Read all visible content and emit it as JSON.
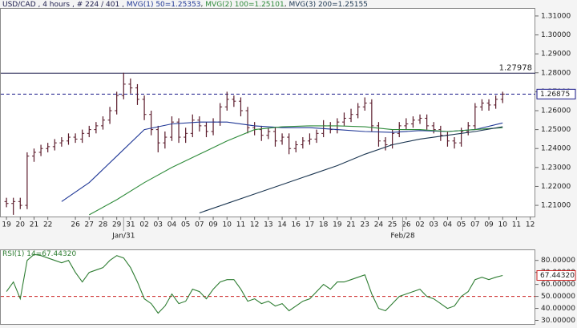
{
  "chart_data": [
    {
      "type": "ohlc",
      "header": "USD/CAD , 4 hours , # 224 / 401 ,",
      "color": "#5a1a2a",
      "x": [
        0,
        0.5,
        1,
        1.5,
        2,
        2.5,
        3,
        3.5,
        4,
        4.5,
        5,
        5.5,
        6,
        6.5,
        7,
        7.5,
        8,
        8.5,
        9,
        9.5,
        10,
        10.5,
        11,
        11.5,
        12,
        12.5,
        13,
        13.5,
        14,
        14.5,
        15,
        15.5,
        16,
        16.5,
        17,
        17.5,
        18,
        18.5,
        19,
        19.5,
        20,
        20.5,
        21,
        21.5,
        22,
        22.5,
        23,
        23.5,
        24,
        24.5,
        25,
        25.5,
        26,
        26.5,
        27,
        27.5,
        28,
        28.5,
        29,
        29.5,
        30,
        30.5,
        31,
        31.5,
        32,
        32.5,
        33,
        33.5,
        34,
        34.5,
        35,
        35.5,
        36
      ],
      "open": [
        1.212,
        1.211,
        1.212,
        1.21,
        1.236,
        1.238,
        1.24,
        1.241,
        1.243,
        1.244,
        1.246,
        1.245,
        1.248,
        1.25,
        1.252,
        1.255,
        1.26,
        1.268,
        1.274,
        1.272,
        1.266,
        1.258,
        1.25,
        1.243,
        1.246,
        1.254,
        1.246,
        1.248,
        1.255,
        1.252,
        1.249,
        1.254,
        1.262,
        1.266,
        1.265,
        1.26,
        1.251,
        1.25,
        1.247,
        1.249,
        1.244,
        1.246,
        1.24,
        1.242,
        1.244,
        1.245,
        1.248,
        1.252,
        1.25,
        1.254,
        1.256,
        1.258,
        1.262,
        1.264,
        1.252,
        1.244,
        1.242,
        1.248,
        1.252,
        1.253,
        1.255,
        1.256,
        1.252,
        1.25,
        1.247,
        1.244,
        1.243,
        1.249,
        1.252,
        1.262,
        1.264,
        1.263,
        1.266
      ],
      "high": [
        1.214,
        1.214,
        1.214,
        1.238,
        1.24,
        1.242,
        1.243,
        1.245,
        1.246,
        1.248,
        1.248,
        1.25,
        1.252,
        1.254,
        1.257,
        1.262,
        1.27,
        1.28,
        1.277,
        1.274,
        1.268,
        1.26,
        1.252,
        1.249,
        1.257,
        1.256,
        1.251,
        1.258,
        1.257,
        1.254,
        1.256,
        1.264,
        1.27,
        1.268,
        1.267,
        1.262,
        1.254,
        1.252,
        1.251,
        1.251,
        1.248,
        1.248,
        1.244,
        1.246,
        1.248,
        1.25,
        1.255,
        1.254,
        1.256,
        1.259,
        1.261,
        1.264,
        1.267,
        1.266,
        1.254,
        1.246,
        1.25,
        1.254,
        1.256,
        1.257,
        1.258,
        1.258,
        1.254,
        1.252,
        1.249,
        1.246,
        1.251,
        1.254,
        1.264,
        1.266,
        1.266,
        1.268,
        1.27
      ],
      "low": [
        1.209,
        1.205,
        1.208,
        1.208,
        1.233,
        1.236,
        1.238,
        1.239,
        1.241,
        1.242,
        1.243,
        1.243,
        1.246,
        1.248,
        1.25,
        1.253,
        1.258,
        1.266,
        1.269,
        1.263,
        1.255,
        1.247,
        1.238,
        1.24,
        1.244,
        1.243,
        1.243,
        1.246,
        1.249,
        1.246,
        1.247,
        1.252,
        1.26,
        1.262,
        1.257,
        1.248,
        1.247,
        1.244,
        1.245,
        1.241,
        1.242,
        1.237,
        1.238,
        1.24,
        1.242,
        1.243,
        1.246,
        1.248,
        1.248,
        1.252,
        1.254,
        1.256,
        1.26,
        1.249,
        1.241,
        1.239,
        1.24,
        1.246,
        1.25,
        1.251,
        1.253,
        1.25,
        1.248,
        1.244,
        1.241,
        1.24,
        1.241,
        1.247,
        1.25,
        1.26,
        1.26,
        1.261,
        1.264
      ],
      "close": [
        1.211,
        1.212,
        1.21,
        1.236,
        1.238,
        1.24,
        1.241,
        1.243,
        1.244,
        1.246,
        1.245,
        1.248,
        1.25,
        1.252,
        1.255,
        1.26,
        1.268,
        1.274,
        1.272,
        1.266,
        1.258,
        1.25,
        1.243,
        1.246,
        1.254,
        1.246,
        1.248,
        1.255,
        1.252,
        1.249,
        1.254,
        1.262,
        1.266,
        1.265,
        1.26,
        1.251,
        1.25,
        1.247,
        1.249,
        1.244,
        1.246,
        1.24,
        1.242,
        1.244,
        1.245,
        1.248,
        1.252,
        1.25,
        1.254,
        1.256,
        1.258,
        1.262,
        1.264,
        1.252,
        1.244,
        1.242,
        1.248,
        1.252,
        1.253,
        1.255,
        1.256,
        1.252,
        1.25,
        1.247,
        1.244,
        1.243,
        1.249,
        1.252,
        1.262,
        1.264,
        1.263,
        1.266,
        1.26875
      ],
      "series": [
        {
          "name": "MVG(1) 50=1.25353",
          "color": "#1f3796",
          "x": [
            0,
            2,
            4,
            6,
            8,
            10,
            12,
            14,
            16,
            18,
            20,
            22,
            24,
            26,
            28,
            30,
            32,
            34,
            36
          ],
          "values": [
            null,
            null,
            1.212,
            1.222,
            1.236,
            1.25,
            1.253,
            1.254,
            1.254,
            1.252,
            1.251,
            1.251,
            1.25,
            1.249,
            1.2485,
            1.2495,
            1.249,
            1.25,
            1.2535
          ]
        },
        {
          "name": "MVG(2) 100=1.25101",
          "color": "#2e8b3a",
          "x": [
            0,
            2,
            4,
            6,
            8,
            10,
            12,
            14,
            16,
            18,
            20,
            22,
            24,
            26,
            28,
            30,
            32,
            34,
            36
          ],
          "values": [
            null,
            null,
            null,
            1.205,
            1.213,
            1.222,
            1.23,
            1.237,
            1.244,
            1.25,
            1.2515,
            1.252,
            1.252,
            1.2515,
            1.25,
            1.25,
            1.249,
            1.25,
            1.251
          ]
        },
        {
          "name": "MVG(3) 200=1.25155",
          "color": "#1a3550",
          "x": [
            0,
            2,
            4,
            6,
            8,
            10,
            12,
            14,
            16,
            18,
            20,
            22,
            24,
            26,
            28,
            30,
            32,
            34,
            36
          ],
          "values": [
            null,
            null,
            null,
            null,
            null,
            null,
            null,
            1.206,
            1.211,
            1.216,
            1.221,
            1.226,
            1.231,
            1.237,
            1.242,
            1.245,
            1.247,
            1.249,
            1.2515
          ]
        }
      ],
      "xlim": [
        -0.47,
        38.37
      ],
      "ylim": [
        1.2041,
        1.3142
      ],
      "yticks": [
        {
          "value": 1.21,
          "label": "1.21000"
        },
        {
          "value": 1.22,
          "label": "1.22000"
        },
        {
          "value": 1.23,
          "label": "1.23000"
        },
        {
          "value": 1.24,
          "label": "1.24000"
        },
        {
          "value": 1.25,
          "label": "1.25000"
        },
        {
          "value": 1.26,
          "label": "1.26000"
        },
        {
          "value": 1.27,
          "label": "1.27000"
        },
        {
          "value": 1.28,
          "label": "1.28000"
        },
        {
          "value": 1.29,
          "label": "1.29000"
        },
        {
          "value": 1.3,
          "label": "1.30000"
        },
        {
          "value": 1.31,
          "label": "1.31000"
        }
      ],
      "xticks": [
        {
          "value": 0,
          "label": "19"
        },
        {
          "value": 1,
          "label": "20"
        },
        {
          "value": 2,
          "label": "21"
        },
        {
          "value": 3,
          "label": "22"
        },
        {
          "value": 5,
          "label": "26"
        },
        {
          "value": 6,
          "label": "27"
        },
        {
          "value": 7,
          "label": "28"
        },
        {
          "value": 8,
          "label": "29"
        },
        {
          "value": 9,
          "label": "31"
        },
        {
          "value": 10,
          "label": "02"
        },
        {
          "value": 11,
          "label": "03"
        },
        {
          "value": 12,
          "label": "04"
        },
        {
          "value": 13,
          "label": "05"
        },
        {
          "value": 14,
          "label": "07"
        },
        {
          "value": 15,
          "label": "09"
        },
        {
          "value": 16,
          "label": "10"
        },
        {
          "value": 17,
          "label": "11"
        },
        {
          "value": 18,
          "label": "12"
        },
        {
          "value": 19,
          "label": "13"
        },
        {
          "value": 20,
          "label": "14"
        },
        {
          "value": 21,
          "label": "16"
        },
        {
          "value": 22,
          "label": "17"
        },
        {
          "value": 23,
          "label": "18"
        },
        {
          "value": 24,
          "label": "19"
        },
        {
          "value": 25,
          "label": "21"
        },
        {
          "value": 26,
          "label": "23"
        },
        {
          "value": 27,
          "label": "24"
        },
        {
          "value": 28,
          "label": "25"
        },
        {
          "value": 29,
          "label": "26"
        },
        {
          "value": 30,
          "label": "02"
        },
        {
          "value": 31,
          "label": "03"
        },
        {
          "value": 32,
          "label": "04"
        },
        {
          "value": 33,
          "label": "05"
        },
        {
          "value": 34,
          "label": "07"
        },
        {
          "value": 35,
          "label": "09"
        },
        {
          "value": 36,
          "label": "10"
        },
        {
          "value": 37,
          "label": "11"
        },
        {
          "value": 38,
          "label": "12"
        }
      ],
      "xticks_secondary": [
        {
          "value": 8.5,
          "label": "Jan/31"
        },
        {
          "value": 28.75,
          "label": "Feb/28"
        }
      ],
      "hlines": [
        {
          "value": 1.27978,
          "style": "solid",
          "color": "#1a1a4a",
          "label_position": "inside"
        },
        {
          "value": 1.26875,
          "style": "dashed",
          "color": "#1a1a8a",
          "label_position": "axis"
        }
      ]
    },
    {
      "type": "line",
      "x": [
        0,
        0.5,
        1,
        1.5,
        2,
        2.5,
        3,
        3.5,
        4,
        4.5,
        5,
        5.5,
        6,
        6.5,
        7,
        7.5,
        8,
        8.5,
        9,
        9.5,
        10,
        10.5,
        11,
        11.5,
        12,
        12.5,
        13,
        13.5,
        14,
        14.5,
        15,
        15.5,
        16,
        16.5,
        17,
        17.5,
        18,
        18.5,
        19,
        19.5,
        20,
        20.5,
        21,
        21.5,
        22,
        22.5,
        23,
        23.5,
        24,
        24.5,
        25,
        25.5,
        26,
        26.5,
        27,
        27.5,
        28,
        28.5,
        29,
        29.5,
        30,
        30.5,
        31,
        31.5,
        32,
        32.5,
        33,
        33.5,
        34,
        34.5,
        35,
        35.5,
        36
      ],
      "series": [
        {
          "name": "RSI(1) 14=67.44320",
          "color": "#2e7d32",
          "values": [
            54,
            62,
            48,
            80,
            85,
            84,
            82,
            80,
            78,
            80,
            70,
            62,
            70,
            72,
            74,
            80,
            84,
            82,
            74,
            62,
            48,
            44,
            36,
            42,
            52,
            44,
            46,
            56,
            54,
            48,
            56,
            62,
            64,
            64,
            56,
            46,
            48,
            44,
            46,
            42,
            44,
            38,
            42,
            46,
            48,
            54,
            60,
            56,
            62,
            62,
            64,
            66,
            68,
            52,
            40,
            38,
            44,
            50,
            52,
            54,
            56,
            50,
            48,
            44,
            40,
            42,
            50,
            54,
            64,
            66,
            64,
            66,
            67.4432
          ],
          "last_value_label": "67.44320"
        }
      ],
      "xlim": [
        -0.47,
        38.37
      ],
      "ylim": [
        27,
        88.5
      ],
      "yticks": [
        {
          "value": 30,
          "label": "30.00000"
        },
        {
          "value": 40,
          "label": "40.00000"
        },
        {
          "value": 50,
          "label": "50.00000"
        },
        {
          "value": 60,
          "label": "60.00000"
        },
        {
          "value": 70,
          "label": "70.00000"
        },
        {
          "value": 80,
          "label": "80.00000"
        }
      ],
      "hlines": [
        {
          "value": 50,
          "style": "dashed",
          "color": "#cc2222"
        }
      ]
    }
  ]
}
